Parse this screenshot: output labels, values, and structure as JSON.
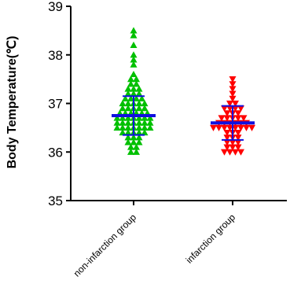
{
  "chart_data": {
    "type": "dotplot",
    "ylabel": "Body Temperature(℃)",
    "categories": [
      "non-infarction group",
      "infarction group"
    ],
    "values": [
      [
        38.5,
        38.4,
        38.2,
        38.0,
        37.9,
        37.8,
        37.6,
        37.5,
        37.5,
        37.4,
        37.4,
        37.3,
        37.3,
        37.3,
        37.2,
        37.2,
        37.2,
        37.1,
        37.1,
        37.1,
        37.1,
        37.0,
        37.0,
        37.0,
        37.0,
        37.0,
        36.9,
        36.9,
        36.9,
        36.9,
        36.9,
        36.8,
        36.8,
        36.8,
        36.8,
        36.8,
        36.8,
        36.7,
        36.7,
        36.7,
        36.7,
        36.7,
        36.7,
        36.7,
        36.6,
        36.6,
        36.6,
        36.6,
        36.6,
        36.6,
        36.6,
        36.5,
        36.5,
        36.5,
        36.5,
        36.5,
        36.5,
        36.5,
        36.4,
        36.4,
        36.4,
        36.4,
        36.4,
        36.3,
        36.3,
        36.3,
        36.2,
        36.2,
        36.2,
        36.1,
        36.1,
        36.0,
        36.0
      ],
      [
        37.5,
        37.4,
        37.3,
        37.2,
        37.1,
        37.0,
        37.0,
        36.9,
        36.9,
        36.9,
        36.9,
        36.8,
        36.8,
        36.8,
        36.7,
        36.7,
        36.7,
        36.7,
        36.7,
        36.6,
        36.6,
        36.6,
        36.6,
        36.6,
        36.6,
        36.5,
        36.5,
        36.5,
        36.5,
        36.5,
        36.5,
        36.5,
        36.5,
        36.4,
        36.4,
        36.4,
        36.3,
        36.3,
        36.3,
        36.2,
        36.2,
        36.2,
        36.1,
        36.1,
        36.1,
        36.0,
        36.0,
        36.0,
        36.0
      ]
    ],
    "mean": [
      36.75,
      36.6
    ],
    "sd": [
      0.4,
      0.35
    ],
    "colors": [
      "#00c000",
      "#ff0000"
    ],
    "markers": [
      "triangle-up",
      "triangle-down"
    ],
    "summary_color": "#1010e0",
    "ylim": [
      35,
      39
    ],
    "yticks": [
      35,
      36,
      37,
      38,
      39
    ]
  }
}
